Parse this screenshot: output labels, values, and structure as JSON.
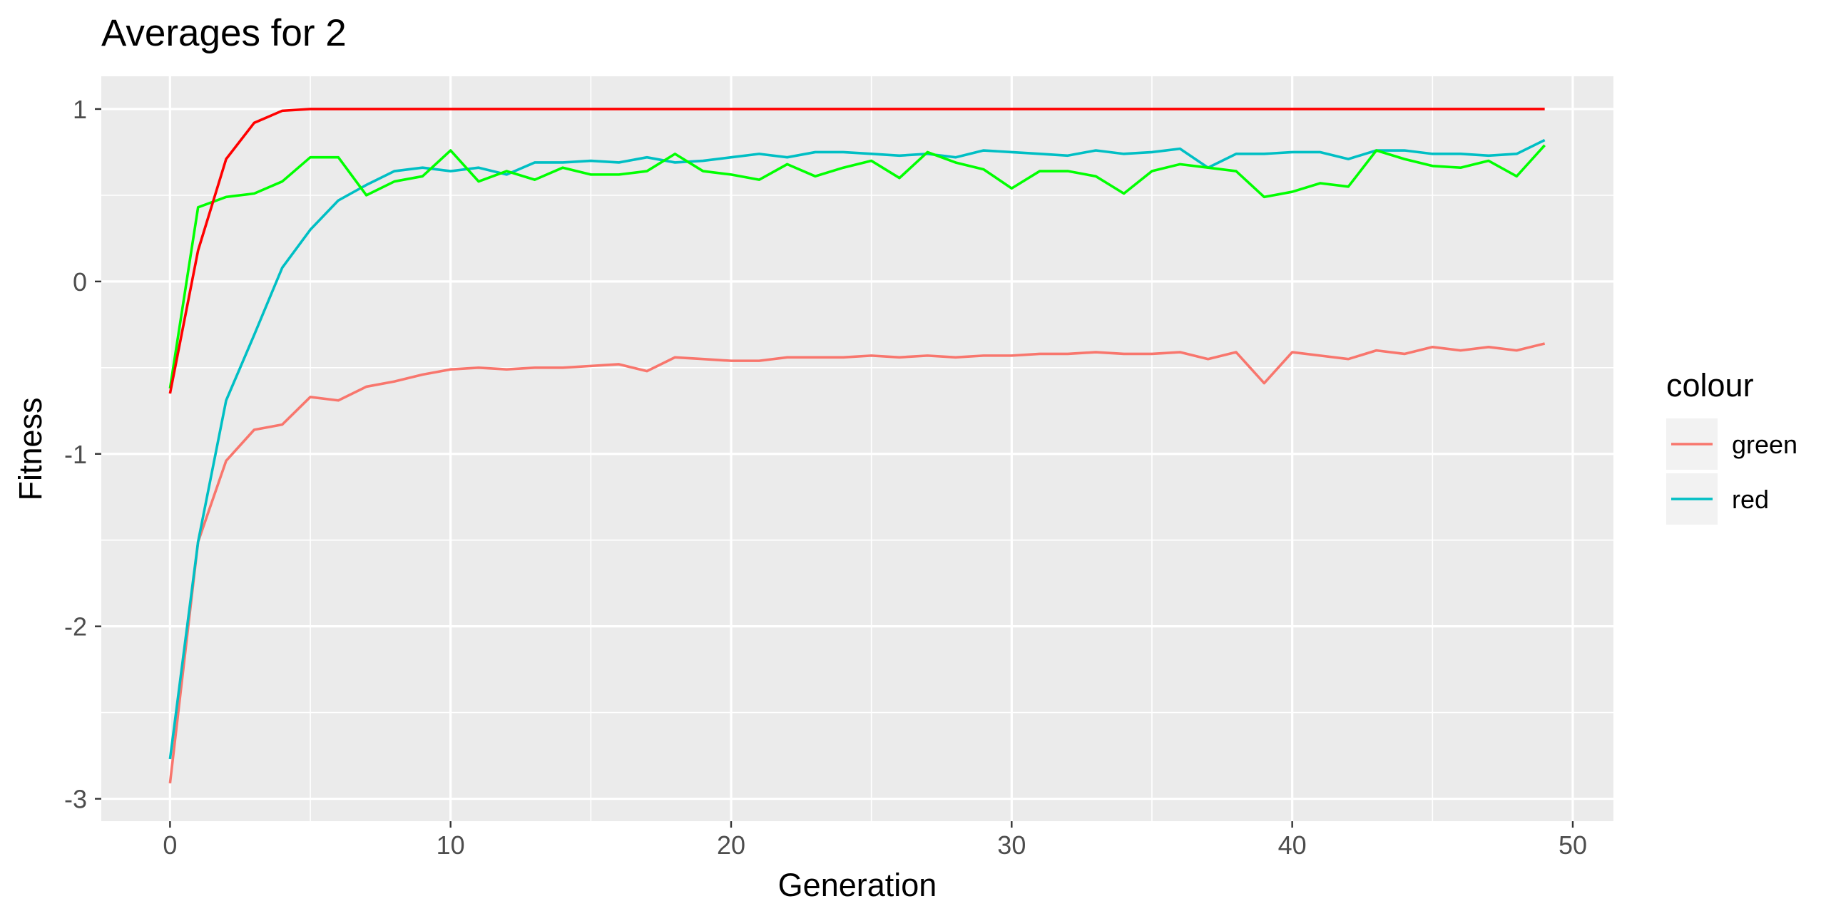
{
  "chart_data": {
    "type": "line",
    "title": "Averages for  2",
    "xlabel": "Generation",
    "ylabel": "Fitness",
    "xlim": [
      -2.45,
      51.45
    ],
    "ylim": [
      -3.13,
      1.19
    ],
    "x_ticks": [
      0,
      10,
      20,
      30,
      40,
      50
    ],
    "x_tick_labels": [
      "0",
      "10",
      "20",
      "30",
      "40",
      "50"
    ],
    "y_ticks": [
      1,
      0,
      -1,
      -2,
      -3
    ],
    "y_tick_labels": [
      "1",
      "0",
      "-1",
      "-2",
      "-3"
    ],
    "grid": true,
    "panel_background": "#ebebeb",
    "grid_color": "#ffffff",
    "legend": {
      "title": "colour",
      "placement": "right",
      "entries": [
        {
          "label": "green",
          "color": "#f8766d"
        },
        {
          "label": "red",
          "color": "#00bfc4"
        }
      ]
    },
    "series": [
      {
        "color": "#f8766d",
        "legend_key": "green",
        "x": [
          0,
          1,
          2,
          3,
          4,
          5,
          6,
          7,
          8,
          9,
          10,
          11,
          12,
          13,
          14,
          15,
          16,
          17,
          18,
          19,
          20,
          21,
          22,
          23,
          24,
          25,
          26,
          27,
          28,
          29,
          30,
          31,
          32,
          33,
          34,
          35,
          36,
          37,
          38,
          39,
          40,
          41,
          42,
          43,
          44,
          45,
          46,
          47,
          48,
          49
        ],
        "y": [
          -2.91,
          -1.51,
          -1.04,
          -0.86,
          -0.83,
          -0.67,
          -0.69,
          -0.61,
          -0.58,
          -0.54,
          -0.51,
          -0.5,
          -0.51,
          -0.5,
          -0.5,
          -0.49,
          -0.48,
          -0.52,
          -0.44,
          -0.45,
          -0.46,
          -0.46,
          -0.44,
          -0.44,
          -0.44,
          -0.43,
          -0.44,
          -0.43,
          -0.44,
          -0.43,
          -0.43,
          -0.42,
          -0.42,
          -0.41,
          -0.42,
          -0.42,
          -0.41,
          -0.45,
          -0.41,
          -0.59,
          -0.41,
          -0.43,
          -0.45,
          -0.4,
          -0.42,
          -0.38,
          -0.4,
          -0.38,
          -0.4,
          -0.36
        ]
      },
      {
        "color": "#00bfc4",
        "legend_key": "red",
        "x": [
          0,
          1,
          2,
          3,
          4,
          5,
          6,
          7,
          8,
          9,
          10,
          11,
          12,
          13,
          14,
          15,
          16,
          17,
          18,
          19,
          20,
          21,
          22,
          23,
          24,
          25,
          26,
          27,
          28,
          29,
          30,
          31,
          32,
          33,
          34,
          35,
          36,
          37,
          38,
          39,
          40,
          41,
          42,
          43,
          44,
          45,
          46,
          47,
          48,
          49
        ],
        "y": [
          -2.77,
          -1.51,
          -0.69,
          -0.31,
          0.08,
          0.3,
          0.47,
          0.56,
          0.64,
          0.66,
          0.64,
          0.66,
          0.62,
          0.69,
          0.69,
          0.7,
          0.69,
          0.72,
          0.69,
          0.7,
          0.72,
          0.74,
          0.72,
          0.75,
          0.75,
          0.74,
          0.73,
          0.74,
          0.72,
          0.76,
          0.75,
          0.74,
          0.73,
          0.76,
          0.74,
          0.75,
          0.77,
          0.66,
          0.74,
          0.74,
          0.75,
          0.75,
          0.71,
          0.76,
          0.76,
          0.74,
          0.74,
          0.73,
          0.74,
          0.82
        ]
      },
      {
        "color": "#00ff00",
        "x": [
          0,
          1,
          2,
          3,
          4,
          5,
          6,
          7,
          8,
          9,
          10,
          11,
          12,
          13,
          14,
          15,
          16,
          17,
          18,
          19,
          20,
          21,
          22,
          23,
          24,
          25,
          26,
          27,
          28,
          29,
          30,
          31,
          32,
          33,
          34,
          35,
          36,
          37,
          38,
          39,
          40,
          41,
          42,
          43,
          44,
          45,
          46,
          47,
          48,
          49
        ],
        "y": [
          -0.62,
          0.43,
          0.49,
          0.51,
          0.58,
          0.72,
          0.72,
          0.5,
          0.58,
          0.61,
          0.76,
          0.58,
          0.64,
          0.59,
          0.66,
          0.62,
          0.62,
          0.64,
          0.74,
          0.64,
          0.62,
          0.59,
          0.68,
          0.61,
          0.66,
          0.7,
          0.6,
          0.75,
          0.69,
          0.65,
          0.54,
          0.64,
          0.64,
          0.61,
          0.51,
          0.64,
          0.68,
          0.66,
          0.64,
          0.49,
          0.52,
          0.57,
          0.55,
          0.76,
          0.71,
          0.67,
          0.66,
          0.7,
          0.61,
          0.79
        ]
      },
      {
        "color": "#ff0000",
        "x": [
          0,
          1,
          2,
          3,
          4,
          5,
          6,
          7,
          8,
          9,
          10,
          11,
          12,
          13,
          14,
          15,
          16,
          17,
          18,
          19,
          20,
          21,
          22,
          23,
          24,
          25,
          26,
          27,
          28,
          29,
          30,
          31,
          32,
          33,
          34,
          35,
          36,
          37,
          38,
          39,
          40,
          41,
          42,
          43,
          44,
          45,
          46,
          47,
          48,
          49
        ],
        "y": [
          -0.65,
          0.18,
          0.71,
          0.92,
          0.99,
          1.0,
          1.0,
          1.0,
          1.0,
          1.0,
          1.0,
          1.0,
          1.0,
          1.0,
          1.0,
          1.0,
          1.0,
          1.0,
          1.0,
          1.0,
          1.0,
          1.0,
          1.0,
          1.0,
          1.0,
          1.0,
          1.0,
          1.0,
          1.0,
          1.0,
          1.0,
          1.0,
          1.0,
          1.0,
          1.0,
          1.0,
          1.0,
          1.0,
          1.0,
          1.0,
          1.0,
          1.0,
          1.0,
          1.0,
          1.0,
          1.0,
          1.0,
          1.0,
          1.0,
          1.0
        ]
      }
    ]
  }
}
